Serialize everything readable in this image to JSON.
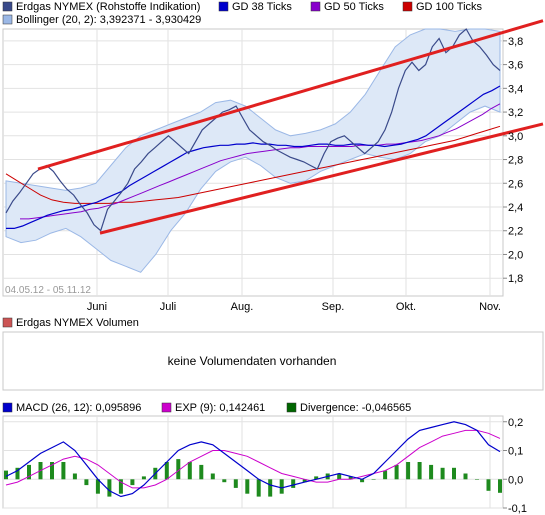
{
  "legend": {
    "row1": [
      {
        "label": "Erdgas NYMEX (Rohstoffe Indikation)",
        "color": "#3a4a8a"
      },
      {
        "label": "GD 38 Ticks",
        "color": "#0000cc"
      },
      {
        "label": "GD 50 Ticks",
        "color": "#8800cc"
      },
      {
        "label": "GD 100 Ticks",
        "color": "#cc0000"
      }
    ],
    "row2": [
      {
        "label": "Bollinger (20, 2): 3,392371 - 3,930429",
        "color": "#9bb8e6"
      }
    ]
  },
  "date_range": "04.05.12 - 05.11.12",
  "volume": {
    "legend": "Erdgas NYMEX Volumen",
    "legend_color": "#cc5555",
    "message": "keine Volumendaten vorhanden"
  },
  "macd_legend": [
    {
      "label": "MACD (26, 12): 0,095896",
      "color": "#0000cc"
    },
    {
      "label": "EXP (9): 0,142461",
      "color": "#cc00cc"
    },
    {
      "label": "Divergence: -0,046565",
      "color": "#006600"
    }
  ],
  "chart_data": [
    {
      "type": "line",
      "x_ticks": [
        "Juni",
        "Juli",
        "Aug.",
        "Sep.",
        "Okt.",
        "Nov."
      ],
      "y_ticks": [
        "1,8",
        "2,0",
        "2,2",
        "2,4",
        "2,6",
        "2,8",
        "3,0",
        "3,2",
        "3,4",
        "3,6",
        "3,8"
      ],
      "ylim": [
        1.65,
        3.9
      ],
      "series": [
        {
          "name": "Erdgas NYMEX (Rohstoffe Indikation)",
          "color": "#3a4a8a",
          "values": [
            2.35,
            2.45,
            2.52,
            2.6,
            2.68,
            2.72,
            2.75,
            2.7,
            2.62,
            2.55,
            2.5,
            2.42,
            2.35,
            2.25,
            2.2,
            2.38,
            2.45,
            2.52,
            2.6,
            2.72,
            2.78,
            2.85,
            2.9,
            2.95,
            3.0,
            2.95,
            2.9,
            2.85,
            2.95,
            3.05,
            3.1,
            3.15,
            3.2,
            3.22,
            3.25,
            3.15,
            3.05,
            3.0,
            2.95,
            2.92,
            2.88,
            2.85,
            2.82,
            2.8,
            2.78,
            2.75,
            2.72,
            2.85,
            2.95,
            2.98,
            3.0,
            2.95,
            2.9,
            2.85,
            2.9,
            2.95,
            3.05,
            3.2,
            3.4,
            3.55,
            3.62,
            3.55,
            3.6,
            3.75,
            3.82,
            3.7,
            3.75,
            3.85,
            3.9,
            3.8,
            3.75,
            3.68,
            3.6,
            3.55
          ]
        },
        {
          "name": "GD 38 Ticks",
          "color": "#0000cc",
          "values": [
            2.22,
            2.22,
            2.24,
            2.27,
            2.3,
            2.33,
            2.35,
            2.37,
            2.38,
            2.4,
            2.42,
            2.44,
            2.47,
            2.5,
            2.53,
            2.58,
            2.62,
            2.66,
            2.7,
            2.74,
            2.78,
            2.82,
            2.86,
            2.88,
            2.9,
            2.91,
            2.92,
            2.92,
            2.93,
            2.93,
            2.94,
            2.93,
            2.93,
            2.92,
            2.92,
            2.91,
            2.91,
            2.92,
            2.93,
            2.93,
            2.92,
            2.92,
            2.93,
            2.93,
            2.92,
            2.92,
            2.91,
            2.92,
            2.93,
            2.95,
            2.97,
            3.0,
            3.05,
            3.1,
            3.15,
            3.2,
            3.25,
            3.3,
            3.35,
            3.38,
            3.42
          ]
        },
        {
          "name": "GD 50 Ticks",
          "color": "#8800cc",
          "values": [
            2.3,
            2.3,
            2.31,
            2.32,
            2.33,
            2.34,
            2.35,
            2.36,
            2.38,
            2.39,
            2.41,
            2.43,
            2.46,
            2.49,
            2.52,
            2.55,
            2.58,
            2.61,
            2.64,
            2.67,
            2.7,
            2.73,
            2.76,
            2.79,
            2.81,
            2.83,
            2.85,
            2.86,
            2.87,
            2.88,
            2.89,
            2.9,
            2.9,
            2.91,
            2.91,
            2.91,
            2.91,
            2.91,
            2.91,
            2.92,
            2.92,
            2.92,
            2.93,
            2.93,
            2.94,
            2.95,
            2.96,
            2.98,
            3.0,
            3.03,
            3.06,
            3.1,
            3.14,
            3.18,
            3.23,
            3.27
          ]
        },
        {
          "name": "GD 100 Ticks",
          "color": "#cc0000",
          "values": [
            2.68,
            2.62,
            2.56,
            2.5,
            2.46,
            2.44,
            2.43,
            2.43,
            2.43,
            2.43,
            2.44,
            2.44,
            2.45,
            2.46,
            2.47,
            2.48,
            2.5,
            2.52,
            2.54,
            2.56,
            2.58,
            2.6,
            2.62,
            2.64,
            2.66,
            2.68,
            2.7,
            2.72,
            2.74,
            2.76,
            2.78,
            2.8,
            2.82,
            2.84,
            2.86,
            2.88,
            2.9,
            2.92,
            2.94,
            2.96,
            2.99,
            3.02,
            3.05,
            3.08
          ]
        },
        {
          "name": "Bollinger upper",
          "color": "#9bb8e6",
          "values": [
            2.62,
            2.6,
            2.58,
            2.56,
            2.54,
            2.56,
            2.6,
            2.75,
            2.9,
            3.0,
            3.05,
            3.1,
            3.15,
            3.2,
            3.28,
            3.3,
            3.25,
            3.15,
            3.05,
            3.0,
            3.02,
            3.05,
            3.1,
            3.2,
            3.35,
            3.55,
            3.75,
            3.85,
            3.9,
            3.9,
            3.88,
            3.9,
            3.9,
            3.88
          ]
        },
        {
          "name": "Bollinger lower",
          "color": "#9bb8e6",
          "values": [
            2.15,
            2.1,
            2.12,
            2.18,
            2.22,
            2.15,
            2.05,
            1.95,
            1.9,
            1.85,
            2.0,
            2.2,
            2.35,
            2.55,
            2.7,
            2.78,
            2.82,
            2.75,
            2.65,
            2.6,
            2.62,
            2.7,
            2.75,
            2.8,
            2.85,
            2.82,
            2.8,
            2.85,
            2.95,
            3.0,
            3.1,
            3.2,
            3.25,
            3.2
          ]
        }
      ],
      "trendlines": [
        {
          "from": [
            "Mai",
            2.72
          ],
          "to": [
            "Nov.",
            3.97
          ],
          "color": "#e02020"
        },
        {
          "from": [
            "Juni",
            2.18
          ],
          "to": [
            "Nov.",
            3.1
          ],
          "color": "#e02020"
        }
      ]
    },
    {
      "type": "bar",
      "x_ticks": [
        "Juni",
        "Juli",
        "Aug.",
        "Sep.",
        "Okt.",
        "Nov."
      ],
      "y_ticks": [
        "-0,1",
        "0,0",
        "0,1",
        "0,2"
      ],
      "ylim": [
        -0.1,
        0.22
      ],
      "series": [
        {
          "name": "MACD (26, 12): 0,095896",
          "color": "#0000cc",
          "values": [
            0.01,
            0.03,
            0.06,
            0.09,
            0.11,
            0.13,
            0.1,
            0.05,
            0.0,
            -0.04,
            -0.06,
            -0.05,
            -0.02,
            0.02,
            0.06,
            0.1,
            0.12,
            0.13,
            0.12,
            0.09,
            0.06,
            0.03,
            0.0,
            -0.02,
            -0.03,
            -0.02,
            -0.01,
            0.0,
            0.01,
            0.02,
            0.01,
            0.0,
            0.02,
            0.06,
            0.1,
            0.14,
            0.17,
            0.18,
            0.19,
            0.2,
            0.19,
            0.17,
            0.12,
            0.096
          ]
        },
        {
          "name": "EXP (9): 0,142461",
          "color": "#cc00cc",
          "values": [
            -0.02,
            -0.01,
            0.01,
            0.03,
            0.05,
            0.07,
            0.08,
            0.07,
            0.05,
            0.02,
            -0.01,
            -0.03,
            -0.03,
            -0.02,
            0.0,
            0.03,
            0.06,
            0.08,
            0.1,
            0.1,
            0.09,
            0.08,
            0.06,
            0.04,
            0.02,
            0.01,
            0.0,
            -0.01,
            -0.01,
            0.0,
            0.0,
            0.01,
            0.02,
            0.03,
            0.05,
            0.08,
            0.11,
            0.13,
            0.15,
            0.16,
            0.17,
            0.17,
            0.16,
            0.142
          ]
        },
        {
          "name": "Divergence: -0,046565",
          "color": "#006600",
          "values": [
            0.03,
            0.04,
            0.05,
            0.06,
            0.06,
            0.06,
            0.02,
            -0.02,
            -0.05,
            -0.06,
            -0.05,
            -0.02,
            0.01,
            0.04,
            0.06,
            0.07,
            0.06,
            0.05,
            0.02,
            -0.01,
            -0.03,
            -0.05,
            -0.06,
            -0.06,
            -0.05,
            -0.03,
            -0.01,
            0.01,
            0.02,
            0.02,
            0.01,
            -0.01,
            0.0,
            0.03,
            0.05,
            0.06,
            0.06,
            0.05,
            0.04,
            0.04,
            0.02,
            0.0,
            -0.04,
            -0.047
          ]
        }
      ]
    }
  ]
}
